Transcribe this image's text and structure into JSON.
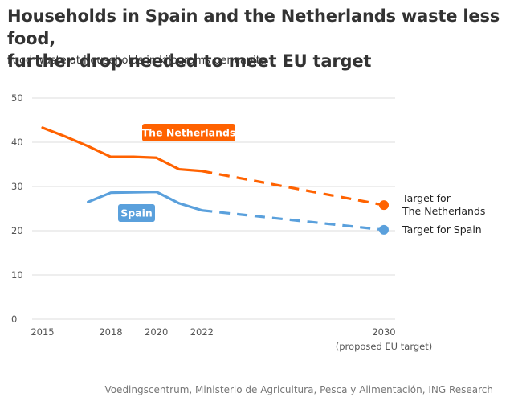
{
  "header": {
    "title_line1": "Households in Spain and the Netherlands waste less food,",
    "title_line2": "further drop needed to meet EU target",
    "subtitle": "Food waste at households in kilograms per capita"
  },
  "source": "Voedingscentrum, Ministerio de Agricultura, Pesca y Alimentación, ING Research",
  "colors": {
    "netherlands": "#ff6200",
    "spain": "#5aa0dc",
    "grid": "#dddddd",
    "text": "#333333"
  },
  "chart_data": {
    "type": "line",
    "ylim": [
      0,
      50
    ],
    "xlim": [
      2015,
      2030
    ],
    "y_ticks": [
      0,
      10,
      20,
      30,
      40,
      50
    ],
    "x_ticks": [
      {
        "value": 2015,
        "label": "2015"
      },
      {
        "value": 2018,
        "label": "2018"
      },
      {
        "value": 2020,
        "label": "2020"
      },
      {
        "value": 2022,
        "label": "2022"
      },
      {
        "value": 2030,
        "label": "2030",
        "sublabel": "(proposed EU target)"
      }
    ],
    "series": [
      {
        "name": "The Netherlands",
        "key": "netherlands",
        "actual": [
          [
            2015,
            43.3
          ],
          [
            2016,
            41.3
          ],
          [
            2017,
            39.1
          ],
          [
            2018,
            36.7
          ],
          [
            2019,
            36.7
          ],
          [
            2020,
            36.5
          ],
          [
            2021,
            33.9
          ],
          [
            2022,
            33.5
          ]
        ],
        "projection": [
          [
            2022,
            33.5
          ],
          [
            2030,
            25.8
          ]
        ],
        "target": {
          "x": 2030,
          "y": 25.8,
          "label_lines": [
            "Target for",
            "The Netherlands"
          ]
        }
      },
      {
        "name": "Spain",
        "key": "spain",
        "actual": [
          [
            2017,
            26.5
          ],
          [
            2018,
            28.6
          ],
          [
            2019,
            28.7
          ],
          [
            2020,
            28.8
          ],
          [
            2021,
            26.2
          ],
          [
            2022,
            24.6
          ]
        ],
        "projection": [
          [
            2022,
            24.6
          ],
          [
            2030,
            20.2
          ]
        ],
        "target": {
          "x": 2030,
          "y": 20.2,
          "label_lines": [
            "Target for Spain"
          ]
        }
      }
    ]
  }
}
